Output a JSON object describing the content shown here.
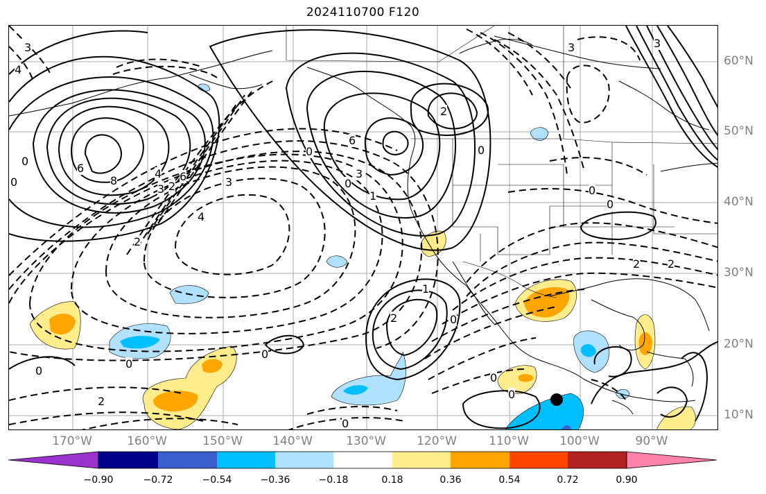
{
  "title": "2024110700 F120",
  "longitude_labels": [
    "170°W",
    "160°W",
    "150°W",
    "140°W",
    "130°W",
    "120°W",
    "110°W",
    "100°W",
    "90°W"
  ],
  "latitude_labels": [
    "60°N",
    "50°N",
    "40°N",
    "30°N",
    "20°N",
    "10°N"
  ],
  "colorbar": {
    "ticks": [
      "−0.90",
      "−0.72",
      "−0.54",
      "−0.36",
      "−0.18",
      "0.18",
      "0.36",
      "0.54",
      "0.72",
      "0.90"
    ],
    "colors": [
      "#9a32cd",
      "#00008b",
      "#3a5fcd",
      "#00bfff",
      "#b0e2ff",
      "#ffffff",
      "#ffec8b",
      "#ffa500",
      "#ff4500",
      "#b22222",
      "#ff82ab"
    ]
  },
  "contour_labels": {
    "c1": "3",
    "c2": "4",
    "c3": "0",
    "c4": "0",
    "c5": "6",
    "c6": "8",
    "c7": "4",
    "c8": "3",
    "c9": "2",
    "c10": "6",
    "c11": "3",
    "c12": "4",
    "c13": "2",
    "c14": "0",
    "c15": "6",
    "c16": "3",
    "c17": "0",
    "c18": "1",
    "c19": "2",
    "c20": "0",
    "c21": "1",
    "c22": "2",
    "c23": "0",
    "c24": "0",
    "c25": "0",
    "c26": "0",
    "c27": "2",
    "c28": "0",
    "c29": "0",
    "c30": "0",
    "c31": "3",
    "c32": "3",
    "c33": "2",
    "c34": "2"
  },
  "marker": "black-dot"
}
